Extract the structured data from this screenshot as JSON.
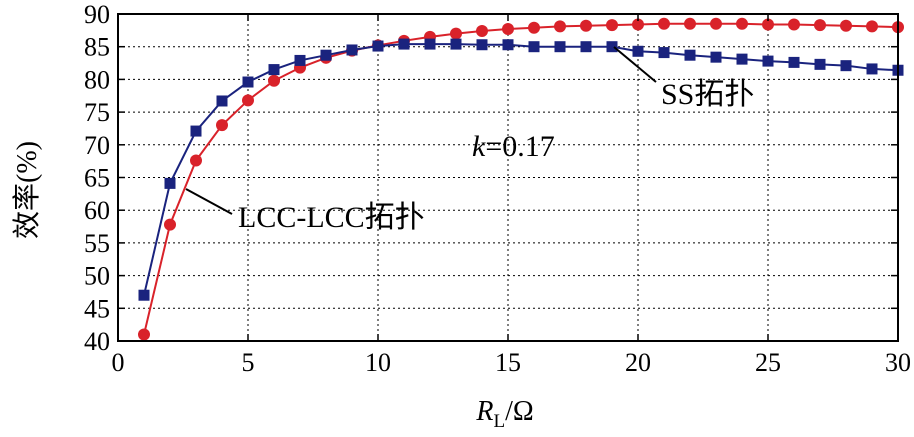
{
  "chart_data": {
    "type": "line",
    "xlabel_main": "R",
    "xlabel_sub": "L",
    "xlabel_unit": "/Ω",
    "ylabel": "效率(%)",
    "xlim": [
      0,
      30
    ],
    "ylim": [
      40,
      90
    ],
    "xticks": [
      0,
      5,
      10,
      15,
      20,
      25,
      30
    ],
    "yticks": [
      40,
      45,
      50,
      55,
      60,
      65,
      70,
      75,
      80,
      85,
      90
    ],
    "grid": true,
    "series": [
      {
        "name": "LCC-LCC拓扑",
        "color": "#d9222a",
        "marker": "circle",
        "x": [
          1,
          2,
          3,
          4,
          5,
          6,
          7,
          8,
          9,
          10,
          11,
          12,
          13,
          14,
          15,
          16,
          17,
          18,
          19,
          20,
          21,
          22,
          23,
          24,
          25,
          26,
          27,
          28,
          29,
          30
        ],
        "values": [
          41.0,
          57.8,
          67.6,
          73.0,
          76.8,
          79.8,
          81.8,
          83.3,
          84.4,
          85.2,
          85.9,
          86.5,
          87.0,
          87.4,
          87.7,
          87.9,
          88.1,
          88.2,
          88.3,
          88.4,
          88.5,
          88.5,
          88.5,
          88.5,
          88.4,
          88.4,
          88.3,
          88.2,
          88.1,
          88.0
        ]
      },
      {
        "name": "SS拓扑",
        "color": "#1a237e",
        "marker": "square",
        "x": [
          1,
          2,
          3,
          4,
          5,
          6,
          7,
          8,
          9,
          10,
          11,
          12,
          13,
          14,
          15,
          16,
          17,
          18,
          19,
          20,
          21,
          22,
          23,
          24,
          25,
          26,
          27,
          28,
          29,
          30
        ],
        "values": [
          47.0,
          64.1,
          72.1,
          76.7,
          79.6,
          81.5,
          82.9,
          83.7,
          84.5,
          85.1,
          85.4,
          85.4,
          85.4,
          85.3,
          85.3,
          85.0,
          85.0,
          85.0,
          85.0,
          84.3,
          84.1,
          83.7,
          83.4,
          83.1,
          82.8,
          82.6,
          82.3,
          82.1,
          81.6,
          81.4
        ]
      }
    ],
    "annotations": {
      "k_symbol": "k",
      "k_value": "=0.17"
    }
  }
}
